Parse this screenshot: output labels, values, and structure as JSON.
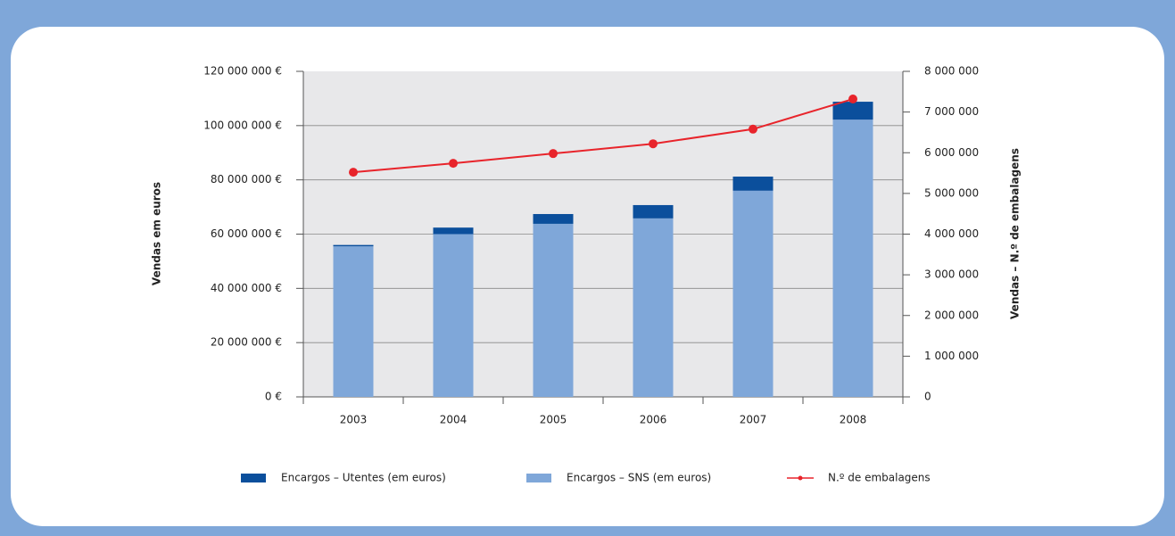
{
  "chart_data": {
    "type": "bar",
    "categories": [
      "2003",
      "2004",
      "2005",
      "2006",
      "2007",
      "2008"
    ],
    "series": [
      {
        "name": "Encargos – Utentes (em euros)",
        "color": "#0b4f9c",
        "type": "bar",
        "values": [
          500000,
          2400000,
          3600000,
          4900000,
          5200000,
          6600000
        ]
      },
      {
        "name": "Encargos – SNS (em euros)",
        "color": "#7fa7d9",
        "type": "bar",
        "values": [
          55500000,
          60000000,
          63800000,
          65800000,
          76000000,
          102200000
        ]
      },
      {
        "name": "N.º de embalagens",
        "color": "#e8242b",
        "type": "line",
        "axis": "y2",
        "values": [
          5520000,
          5740000,
          5980000,
          6220000,
          6580000,
          7320000
        ]
      }
    ],
    "ylabel": "Vendas em euros",
    "y2label": "Vendas – N.º de embalagens",
    "ylim": [
      0,
      120000000
    ],
    "yticks": [
      {
        "value": 0,
        "label": "0 €"
      },
      {
        "value": 20000000,
        "label": "20 000 000 €"
      },
      {
        "value": 40000000,
        "label": "40 000 000 €"
      },
      {
        "value": 60000000,
        "label": "60 000 000 €"
      },
      {
        "value": 80000000,
        "label": "80 000 000 €"
      },
      {
        "value": 100000000,
        "label": "100 000 000 €"
      },
      {
        "value": 120000000,
        "label": "120 000 000 €"
      }
    ],
    "y2lim": [
      0,
      8000000
    ],
    "y2ticks": [
      0,
      {
        "value": 1000000,
        "label": "1 000 000"
      },
      {
        "value": 2000000,
        "label": "2 000 000"
      },
      {
        "value": 3000000,
        "label": "3 000 000"
      },
      {
        "value": 4000000,
        "label": "4 000 000"
      },
      {
        "value": 5000000,
        "label": "5 000 000"
      },
      {
        "value": 6000000,
        "label": "6 000 000"
      },
      {
        "value": 7000000,
        "label": "7 000 000"
      },
      {
        "value": 8000000,
        "label": "8 000 000"
      }
    ],
    "grid": true,
    "legend": "bottom"
  }
}
